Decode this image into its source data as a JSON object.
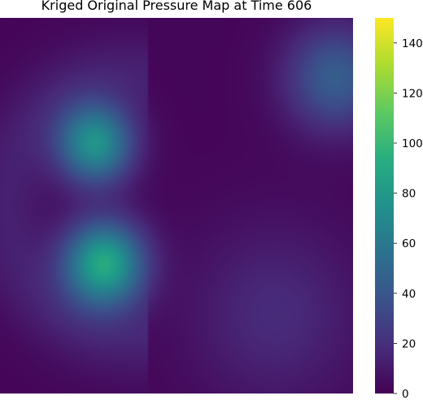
{
  "chart_data": {
    "type": "heatmap",
    "title": "Kriged Original Pressure Map at Time 606",
    "xlabel": "",
    "ylabel": "",
    "colormap": "viridis",
    "colorbar": {
      "range": [
        0,
        150
      ],
      "ticks": [
        0,
        20,
        40,
        60,
        80,
        100,
        120,
        140
      ]
    },
    "grid": false,
    "field_sources": [
      {
        "x": 0.27,
        "y": 0.335,
        "value": 74,
        "spread": 0.075
      },
      {
        "x": 0.295,
        "y": 0.655,
        "value": 88,
        "spread": 0.08
      },
      {
        "x": 0.95,
        "y": 0.16,
        "value": 42,
        "spread": 0.1
      },
      {
        "x": 0.78,
        "y": 0.79,
        "value": 16,
        "spread": 0.17
      }
    ],
    "background_value": 2,
    "halo": {
      "x": 0.37,
      "y": 0.5,
      "radius": 0.35,
      "width": 0.08,
      "value": 16
    }
  }
}
